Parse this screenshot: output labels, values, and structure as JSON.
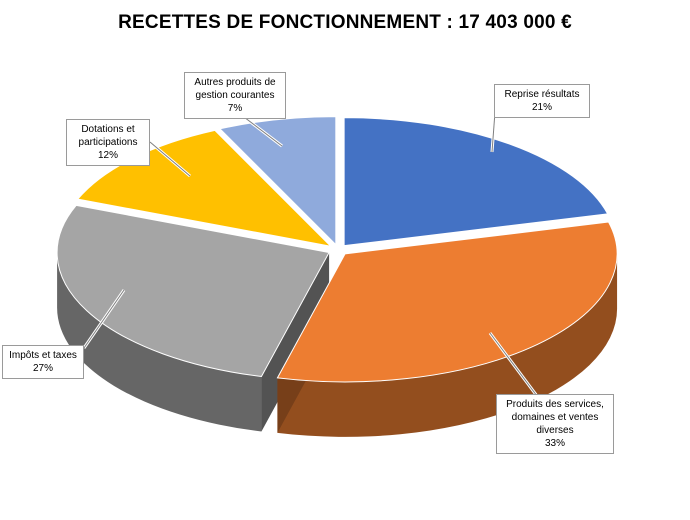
{
  "chart_data": {
    "type": "pie",
    "title": "RECETTES  DE FONCTIONNEMENT  : 17 403 000 €",
    "slices": [
      {
        "label": "Reprise résultats",
        "value": 21,
        "value_label": "21%",
        "color": "#4472C4"
      },
      {
        "label": "Produits des services, domaines et ventes diverses",
        "value": 33,
        "value_label": "33%",
        "color": "#ED7D31"
      },
      {
        "label": "Impôts et taxes",
        "value": 27,
        "value_label": "27%",
        "color": "#A5A5A5"
      },
      {
        "label": "Dotations et participations",
        "value": 12,
        "value_label": "12%",
        "color": "#FFC000"
      },
      {
        "label": "Autres produits de gestion courantes",
        "value": 7,
        "value_label": "7%",
        "color": "#8FAADC"
      }
    ],
    "legend": "none",
    "style": "3d-exploded"
  }
}
